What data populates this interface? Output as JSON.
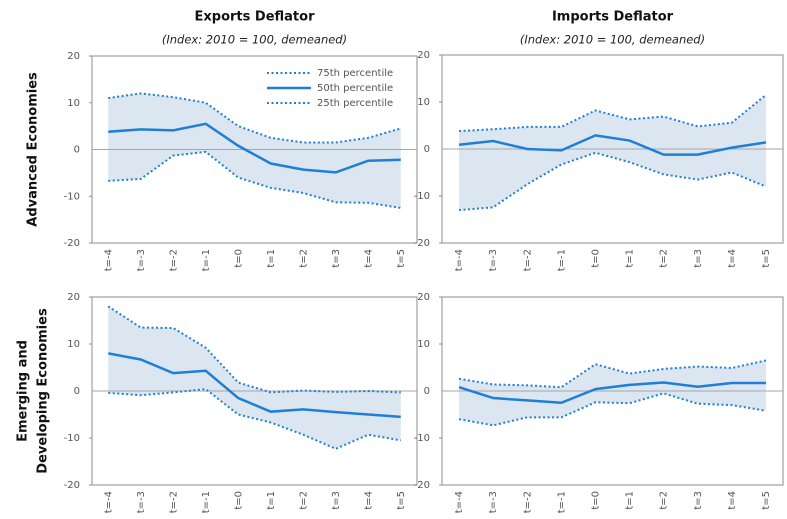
{
  "chart_data": [
    {
      "type": "band-line",
      "title": "Exports Deflator",
      "subtitle": "(Index: 2010 = 100, demeaned)",
      "row_label": [
        "Advanced Economies"
      ],
      "categories": [
        "t=-4",
        "t=-3",
        "t=-2",
        "t=-1",
        "t=0",
        "t=1",
        "t=2",
        "t=3",
        "t=4",
        "t=5"
      ],
      "ylim": [
        -20,
        20
      ],
      "yticks": [
        -20,
        -10,
        0,
        10,
        20
      ],
      "band_color": "#dbe6f1",
      "legend": "upper right",
      "series": [
        {
          "name": "75th percentile",
          "color": "#1f7fd6",
          "dash": "dotted",
          "values": [
            11,
            12,
            11.2,
            10,
            5,
            2.5,
            1.5,
            1.5,
            2.5,
            4.5
          ]
        },
        {
          "name": "50th percentile",
          "color": "#1f7fd6",
          "dash": "solid",
          "values": [
            3.8,
            4.3,
            4.1,
            5.5,
            0.8,
            -3,
            -4.3,
            -4.9,
            -2.4,
            -2.2
          ]
        },
        {
          "name": "25th percentile",
          "color": "#1f7fd6",
          "dash": "dotted",
          "values": [
            -6.7,
            -6.3,
            -1.3,
            -0.5,
            -6,
            -8.2,
            -9.3,
            -11.3,
            -11.4,
            -12.5
          ]
        }
      ]
    },
    {
      "type": "band-line",
      "title": "Imports Deflator",
      "subtitle": "(Index: 2010 = 100, demeaned)",
      "categories": [
        "t=-4",
        "t=-3",
        "t=-2",
        "t=-1",
        "t=0",
        "t=1",
        "t=2",
        "t=3",
        "t=4",
        "t=5"
      ],
      "ylim": [
        -20,
        20
      ],
      "yticks": [
        -20,
        -10,
        0,
        10,
        20
      ],
      "band_color": "#dbe6f1",
      "series": [
        {
          "color": "#1f7fd6",
          "dash": "dotted",
          "values": [
            3.8,
            4.2,
            4.7,
            4.7,
            8.2,
            6.3,
            6.9,
            4.8,
            5.6,
            11.5
          ]
        },
        {
          "color": "#1f7fd6",
          "dash": "solid",
          "values": [
            0.9,
            1.7,
            0,
            -0.3,
            2.9,
            1.8,
            -1.2,
            -1.2,
            0.3,
            1.4
          ]
        },
        {
          "color": "#1f7fd6",
          "dash": "dotted",
          "values": [
            -13,
            -12.4,
            -7.5,
            -3.3,
            -0.8,
            -2.8,
            -5.4,
            -6.5,
            -5,
            -8
          ]
        }
      ]
    },
    {
      "type": "band-line",
      "row_label": [
        "Emerging and",
        "Developing Economies"
      ],
      "categories": [
        "t=-4",
        "t=-3",
        "t=-2",
        "t=-1",
        "t=0",
        "t=1",
        "t=2",
        "t=3",
        "t=4",
        "t=5"
      ],
      "ylim": [
        -20,
        20
      ],
      "yticks": [
        -20,
        -10,
        0,
        10,
        20
      ],
      "band_color": "#dbe6f1",
      "series": [
        {
          "color": "#1f7fd6",
          "dash": "dotted",
          "values": [
            18,
            13.5,
            13.4,
            9.2,
            1.8,
            -0.3,
            0.1,
            -0.2,
            0,
            -0.3
          ]
        },
        {
          "color": "#1f7fd6",
          "dash": "solid",
          "values": [
            8,
            6.7,
            3.8,
            4.3,
            -1.5,
            -4.4,
            -3.9,
            -4.5,
            -5,
            -5.5
          ]
        },
        {
          "color": "#1f7fd6",
          "dash": "dotted",
          "values": [
            -0.4,
            -0.9,
            -0.3,
            0.4,
            -5,
            -6.7,
            -9.3,
            -12.3,
            -9.3,
            -10.5
          ]
        }
      ]
    },
    {
      "type": "band-line",
      "categories": [
        "t=-4",
        "t=-3",
        "t=-2",
        "t=-1",
        "t=0",
        "t=1",
        "t=2",
        "t=3",
        "t=4",
        "t=5"
      ],
      "ylim": [
        -20,
        20
      ],
      "yticks": [
        -20,
        -10,
        0,
        10,
        20
      ],
      "band_color": "#dbe6f1",
      "series": [
        {
          "color": "#1f7fd6",
          "dash": "dotted",
          "values": [
            2.6,
            1.4,
            1.2,
            0.8,
            5.7,
            3.7,
            4.7,
            5.2,
            4.9,
            6.5
          ]
        },
        {
          "color": "#1f7fd6",
          "dash": "solid",
          "values": [
            0.8,
            -1.5,
            -2,
            -2.5,
            0.4,
            1.3,
            1.8,
            0.9,
            1.7,
            1.7
          ]
        },
        {
          "color": "#1f7fd6",
          "dash": "dotted",
          "values": [
            -6,
            -7.3,
            -5.6,
            -5.6,
            -2.4,
            -2.6,
            -0.5,
            -2.7,
            -3,
            -4.2
          ]
        }
      ]
    }
  ]
}
